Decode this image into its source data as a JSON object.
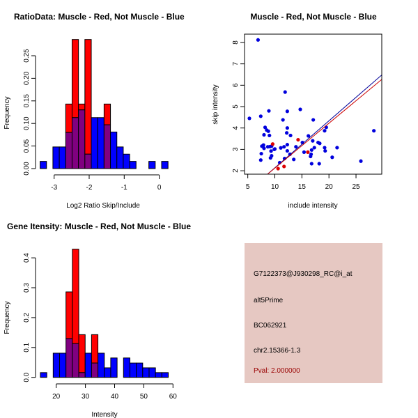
{
  "chart_data": [
    {
      "type": "bar",
      "title": "RatioData: Muscle - Red, Not Muscle - Blue",
      "xlabel": "Log2 Ratio Skip/Include",
      "ylabel": "Frequency",
      "xlim": [
        -3.5,
        0.3
      ],
      "ylim": [
        0,
        0.29
      ],
      "xticks": [
        "-3",
        "-2",
        "-1",
        "0"
      ],
      "yticks": [
        "0.00",
        "0.05",
        "0.10",
        "0.15",
        "0.20",
        "0.25"
      ],
      "bin_start": -3.4,
      "bin_width": 0.1825,
      "series": [
        {
          "name": "Not Muscle",
          "color": "#0000ff",
          "values": [
            0.016,
            0,
            0.048,
            0.048,
            0.08,
            0.113,
            0.13,
            0.032,
            0.113,
            0.113,
            0.097,
            0.081,
            0.048,
            0.032,
            0.016,
            0,
            0,
            0.016,
            0,
            0.016
          ]
        },
        {
          "name": "Muscle",
          "color": "#ff0000",
          "values": [
            0,
            0,
            0,
            0,
            0.143,
            0.286,
            0.143,
            0.286,
            0,
            0,
            0.143,
            0,
            0,
            0,
            0,
            0,
            0,
            0,
            0,
            0
          ]
        }
      ],
      "overlap_color": "#800080"
    },
    {
      "type": "scatter",
      "title": "Muscle - Red, Not Muscle - Blue",
      "xlabel": "include intensity",
      "ylabel": "skip intensity",
      "xlim": [
        4.4,
        29.76
      ],
      "ylim": [
        1.84,
        8.39
      ],
      "xticks": [
        "5",
        "10",
        "15",
        "20",
        "25"
      ],
      "yticks": [
        "2",
        "3",
        "4",
        "5",
        "6",
        "7",
        "8"
      ],
      "series": [
        {
          "name": "Not Muscle",
          "color": "#0000dd",
          "points": [
            [
              5.3,
              4.45
            ],
            [
              6.9,
              8.12
            ],
            [
              7.4,
              4.55
            ],
            [
              7.6,
              3.15
            ],
            [
              7.5,
              2.8
            ],
            [
              7.4,
              2.5
            ],
            [
              7.9,
              3.2
            ],
            [
              8.0,
              3.05
            ],
            [
              8.0,
              3.68
            ],
            [
              8.2,
              4.03
            ],
            [
              8.5,
              3.9
            ],
            [
              8.8,
              3.85
            ],
            [
              8.9,
              4.8
            ],
            [
              9.0,
              3.65
            ],
            [
              8.7,
              3.12
            ],
            [
              9.1,
              3.13
            ],
            [
              9.4,
              3.15
            ],
            [
              9.3,
              2.92
            ],
            [
              9.2,
              2.6
            ],
            [
              9.4,
              2.7
            ],
            [
              9.9,
              3.0
            ],
            [
              10.0,
              3.02
            ],
            [
              10.9,
              2.38
            ],
            [
              11.1,
              3.07
            ],
            [
              11.7,
              3.12
            ],
            [
              11.5,
              4.38
            ],
            [
              11.9,
              5.68
            ],
            [
              11.8,
              2.57
            ],
            [
              12.2,
              3.77
            ],
            [
              12.3,
              4.0
            ],
            [
              12.3,
              4.78
            ],
            [
              12.3,
              3.22
            ],
            [
              12.3,
              2.93
            ],
            [
              12.8,
              2.77
            ],
            [
              12.9,
              3.65
            ],
            [
              13.5,
              2.53
            ],
            [
              13.9,
              3.12
            ],
            [
              14.7,
              4.87
            ],
            [
              15.1,
              3.32
            ],
            [
              15.4,
              2.87
            ],
            [
              16.2,
              3.63
            ],
            [
              16.6,
              2.67
            ],
            [
              16.7,
              2.77
            ],
            [
              16.8,
              2.97
            ],
            [
              16.8,
              2.33
            ],
            [
              17.0,
              3.4
            ],
            [
              17.1,
              4.38
            ],
            [
              17.3,
              3.08
            ],
            [
              18.0,
              3.32
            ],
            [
              18.3,
              3.28
            ],
            [
              18.2,
              2.33
            ],
            [
              19.2,
              3.87
            ],
            [
              19.2,
              3.08
            ],
            [
              19.3,
              2.93
            ],
            [
              19.5,
              4.03
            ],
            [
              20.6,
              2.63
            ],
            [
              21.5,
              3.08
            ],
            [
              25.9,
              2.45
            ],
            [
              28.3,
              3.87
            ]
          ],
          "fit": {
            "intercept": -0.061,
            "slope": 0.2198
          }
        },
        {
          "name": "Muscle",
          "color": "#dd0000",
          "points": [
            [
              9.6,
              3.25
            ],
            [
              10.6,
              2.1
            ],
            [
              11.7,
              2.2
            ],
            [
              14.3,
              3.45
            ],
            [
              16.1,
              2.87
            ]
          ],
          "fit": {
            "intercept": 0.023,
            "slope": 0.21
          }
        }
      ]
    },
    {
      "type": "bar",
      "title": "Gene Itensity: Muscle - Red, Not Muscle - Blue",
      "xlabel": "Intensity",
      "ylabel": "Frequency",
      "xlim": [
        14,
        60
      ],
      "ylim": [
        0,
        0.43
      ],
      "xticks": [
        "20",
        "30",
        "40",
        "50",
        "60"
      ],
      "yticks": [
        "0.0",
        "0.1",
        "0.2",
        "0.3",
        "0.4"
      ],
      "bin_start": 14.58,
      "bin_width": 2.19,
      "series": [
        {
          "name": "Not Muscle",
          "color": "#0000ff",
          "values": [
            0.016,
            0,
            0.081,
            0.081,
            0.13,
            0.113,
            0.016,
            0.081,
            0.048,
            0.081,
            0.032,
            0.065,
            0,
            0.065,
            0.048,
            0.048,
            0.032,
            0.032,
            0.016,
            0.016
          ]
        },
        {
          "name": "Muscle",
          "color": "#ff0000",
          "values": [
            0,
            0,
            0,
            0,
            0.286,
            0.429,
            0.143,
            0,
            0.143,
            0,
            0,
            0,
            0,
            0,
            0,
            0,
            0,
            0,
            0,
            0
          ]
        }
      ],
      "overlap_color": "#800080"
    }
  ],
  "info": {
    "probe": "G7122373@J930298_RC@i_at",
    "event": "alt5Prime",
    "accession": "BC062921",
    "location": "chr2.15366-1.3",
    "pval": "Pval: 2.000000",
    "bg_color": "#e6c8c2",
    "pval_color": "#990000"
  }
}
